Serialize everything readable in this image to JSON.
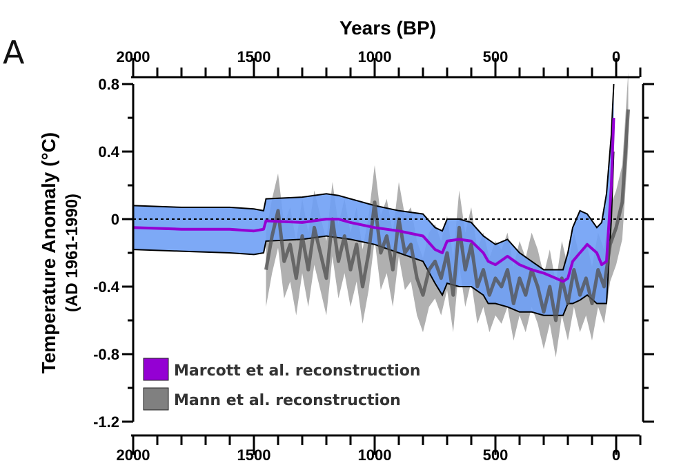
{
  "panel_label": "A",
  "chart_data": {
    "type": "line",
    "xlabel": "Years (BP)",
    "ylabel": "Temperature Anomaly (°C)",
    "ylabel_sub": "(AD 1961-1990)",
    "xlim": [
      2000,
      -100
    ],
    "ylim": [
      -1.2,
      0.8
    ],
    "x_ticks": [
      2000,
      1500,
      1000,
      500,
      0
    ],
    "x_tick_labels": [
      "2000",
      "1500",
      "1000",
      "500",
      "0"
    ],
    "y_ticks": [
      0.8,
      0.4,
      0,
      -0.4,
      -0.8,
      -1.2
    ],
    "y_tick_labels": [
      "0.8",
      "0.4",
      "0",
      "-0.4",
      "-0.8",
      "-1.2"
    ],
    "zero_line": "dotted",
    "legend_placement": "bottom-left",
    "colors": {
      "marcott": "#9400d3",
      "marcott_band": "#6fa0f5",
      "mann_mean": "#555555",
      "mann_band": "#b0b0b0"
    },
    "series": [
      {
        "name": "Marcott et al. reconstruction",
        "x": [
          2000,
          1800,
          1600,
          1500,
          1460,
          1450,
          1300,
          1200,
          1150,
          1100,
          1000,
          900,
          800,
          750,
          720,
          700,
          650,
          600,
          550,
          530,
          500,
          450,
          400,
          350,
          300,
          250,
          220,
          200,
          180,
          150,
          120,
          80,
          60,
          40,
          20,
          10
        ],
        "y": [
          -0.05,
          -0.06,
          -0.06,
          -0.07,
          -0.06,
          -0.01,
          -0.02,
          0.0,
          0.0,
          -0.02,
          -0.05,
          -0.07,
          -0.1,
          -0.18,
          -0.2,
          -0.13,
          -0.12,
          -0.13,
          -0.2,
          -0.25,
          -0.27,
          -0.22,
          -0.27,
          -0.3,
          -0.32,
          -0.35,
          -0.37,
          -0.35,
          -0.25,
          -0.2,
          -0.15,
          -0.2,
          -0.27,
          -0.25,
          0.2,
          0.6
        ],
        "upper": [
          0.08,
          0.07,
          0.07,
          0.06,
          0.05,
          0.12,
          0.13,
          0.15,
          0.14,
          0.12,
          0.08,
          0.05,
          0.03,
          -0.05,
          -0.07,
          0.0,
          0.0,
          -0.02,
          -0.1,
          -0.12,
          -0.15,
          -0.12,
          -0.2,
          -0.25,
          -0.3,
          -0.3,
          -0.3,
          -0.2,
          -0.05,
          0.05,
          0.03,
          -0.05,
          -0.02,
          0.15,
          0.5,
          0.8
        ],
        "lower": [
          -0.18,
          -0.19,
          -0.2,
          -0.21,
          -0.2,
          -0.13,
          -0.12,
          -0.1,
          -0.11,
          -0.12,
          -0.15,
          -0.2,
          -0.25,
          -0.38,
          -0.45,
          -0.38,
          -0.4,
          -0.4,
          -0.45,
          -0.5,
          -0.5,
          -0.52,
          -0.55,
          -0.55,
          -0.57,
          -0.57,
          -0.57,
          -0.5,
          -0.5,
          -0.48,
          -0.45,
          -0.5,
          -0.5,
          -0.5,
          0.0,
          0.4
        ]
      },
      {
        "name": "Mann et al. reconstruction",
        "x": [
          1450,
          1425,
          1400,
          1375,
          1350,
          1325,
          1300,
          1275,
          1250,
          1225,
          1200,
          1175,
          1150,
          1125,
          1100,
          1075,
          1050,
          1025,
          1000,
          975,
          950,
          925,
          900,
          875,
          850,
          825,
          800,
          775,
          750,
          725,
          700,
          675,
          650,
          625,
          600,
          575,
          550,
          525,
          500,
          475,
          450,
          425,
          400,
          375,
          350,
          325,
          300,
          275,
          250,
          225,
          200,
          175,
          150,
          125,
          100,
          75,
          50,
          25,
          0,
          -25,
          -50
        ],
        "y": [
          -0.3,
          -0.1,
          0.05,
          -0.25,
          -0.15,
          -0.35,
          -0.1,
          -0.3,
          -0.05,
          -0.2,
          -0.35,
          0.0,
          -0.25,
          -0.1,
          -0.3,
          -0.15,
          -0.4,
          -0.2,
          0.1,
          -0.2,
          -0.1,
          -0.3,
          0.0,
          -0.2,
          -0.15,
          -0.35,
          -0.45,
          -0.3,
          -0.25,
          -0.35,
          -0.2,
          -0.45,
          -0.05,
          -0.3,
          -0.15,
          -0.4,
          -0.3,
          -0.45,
          -0.35,
          -0.4,
          -0.3,
          -0.5,
          -0.35,
          -0.45,
          -0.3,
          -0.4,
          -0.55,
          -0.4,
          -0.6,
          -0.35,
          -0.5,
          -0.3,
          -0.45,
          -0.35,
          -0.5,
          -0.3,
          -0.4,
          -0.15,
          -0.05,
          0.1,
          0.65
        ],
        "band_halfwidth": 0.22
      }
    ]
  }
}
